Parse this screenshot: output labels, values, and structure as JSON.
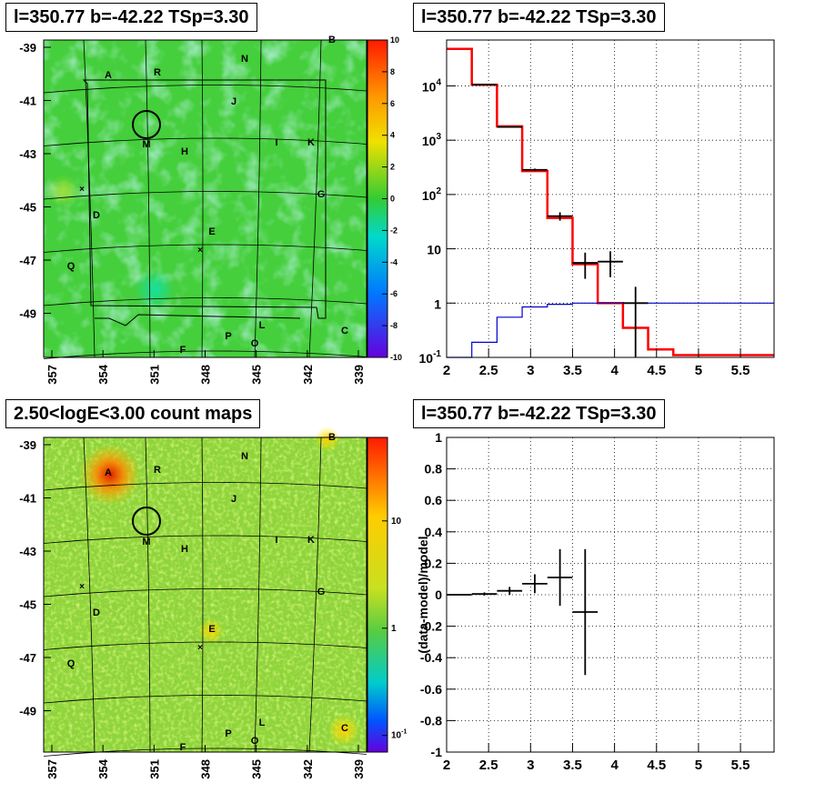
{
  "titles": {
    "tl": "l=350.77 b=-42.22 TSp=3.30",
    "tr": "l=350.77 b=-42.22 TSp=3.30",
    "bl": "2.50<logE<3.00 count maps",
    "br": "l=350.77 b=-42.22 TSp=3.30"
  },
  "colors": {
    "data": "#000000",
    "model": "#ff0000",
    "source": "#0000cc",
    "map_base": "#44d13a"
  },
  "chart_data": [
    {
      "id": "tsmap",
      "type": "heatmap",
      "title": "l=350.77 b=-42.22 TSp=3.30",
      "x_ticks": [
        "357",
        "354",
        "351",
        "348",
        "345",
        "342",
        "339"
      ],
      "y_ticks": [
        "-39",
        "-41",
        "-43",
        "-45",
        "-47",
        "-49"
      ],
      "colorbar_ticks": [
        "10",
        "8",
        "6",
        "4",
        "2",
        "0",
        "-2",
        "-4",
        "-6",
        "-8",
        "-10"
      ],
      "zlim": [
        -10,
        10
      ],
      "source_labels": [
        "A",
        "B",
        "C",
        "D",
        "E",
        "F",
        "G",
        "H",
        "I",
        "J",
        "K",
        "L",
        "M",
        "N",
        "O",
        "P",
        "Q",
        "R"
      ]
    },
    {
      "id": "spectrum",
      "type": "line",
      "title": "l=350.77 b=-42.22 TSp=3.30",
      "xlim": [
        2,
        5.9
      ],
      "ylog": true,
      "ylim": [
        0.1,
        70000
      ],
      "x_ticks": [
        "2",
        "2.5",
        "3",
        "3.5",
        "4",
        "4.5",
        "5",
        "5.5"
      ],
      "y_ticks": [
        {
          "v": 0.1,
          "base": "10",
          "exp": "-1"
        },
        {
          "v": 1,
          "base": "1",
          "exp": ""
        },
        {
          "v": 10,
          "base": "10",
          "exp": ""
        },
        {
          "v": 100,
          "base": "10",
          "exp": "2"
        },
        {
          "v": 1000,
          "base": "10",
          "exp": "3"
        },
        {
          "v": 10000,
          "base": "10",
          "exp": "4"
        }
      ],
      "bin_edges": [
        2.0,
        2.3,
        2.6,
        2.9,
        3.2,
        3.5,
        3.8,
        4.1,
        4.4,
        4.7,
        5.0,
        5.3,
        5.6,
        5.9
      ],
      "series": [
        {
          "values": [
            48000,
            10500,
            1800,
            270,
            37,
            5.2,
            1.0,
            0.35,
            0.14,
            0.11,
            0.11,
            0.11,
            0.11
          ]
        },
        {
          "values": [
            0.1,
            0.19,
            0.55,
            0.85,
            0.95,
            1.0,
            1.0,
            1.0,
            1.0,
            1.0,
            1.0,
            1.0,
            1.0
          ]
        }
      ],
      "data_points": [
        {
          "x": 2.45,
          "y": 10600,
          "xerr": 0.15,
          "yerr_lo": 10500,
          "yerr_hi": 10700
        },
        {
          "x": 2.75,
          "y": 1750,
          "xerr": 0.15,
          "yerr_lo": 1700,
          "yerr_hi": 1800
        },
        {
          "x": 3.05,
          "y": 285,
          "xerr": 0.15,
          "yerr_lo": 270,
          "yerr_hi": 300
        },
        {
          "x": 3.35,
          "y": 40,
          "xerr": 0.15,
          "yerr_lo": 33,
          "yerr_hi": 47
        },
        {
          "x": 3.65,
          "y": 5.5,
          "xerr": 0.15,
          "yerr_lo": 2.8,
          "yerr_hi": 8.5
        },
        {
          "x": 3.95,
          "y": 5.8,
          "xerr": 0.15,
          "yerr_lo": 3.0,
          "yerr_hi": 9.0
        },
        {
          "x": 4.25,
          "y": 1.0,
          "xerr": 0.15,
          "yerr_lo": 0.1,
          "yerr_hi": 2.0
        }
      ]
    },
    {
      "id": "countmap",
      "type": "heatmap",
      "title": "2.50<logE<3.00 count maps",
      "x_ticks": [
        "357",
        "354",
        "351",
        "348",
        "345",
        "342",
        "339"
      ],
      "y_ticks": [
        "-39",
        "-41",
        "-43",
        "-45",
        "-47",
        "-49"
      ],
      "colorbar_ticks": [
        {
          "v": 10,
          "base": "10",
          "exp": ""
        },
        {
          "v": 1,
          "base": "1",
          "exp": ""
        },
        {
          "v": 0.1,
          "base": "10",
          "exp": "-1"
        }
      ],
      "source_labels": [
        "A",
        "B",
        "C",
        "D",
        "E",
        "F",
        "G",
        "H",
        "I",
        "J",
        "K",
        "L",
        "M",
        "N",
        "O",
        "P",
        "Q",
        "R"
      ]
    },
    {
      "id": "residuals",
      "type": "scatter",
      "title": "l=350.77 b=-42.22 TSp=3.30",
      "ylabel": "(data-model)/model",
      "xlim": [
        2,
        5.9
      ],
      "ylim": [
        -1,
        1
      ],
      "x_ticks": [
        "2",
        "2.5",
        "3",
        "3.5",
        "4",
        "4.5",
        "5",
        "5.5"
      ],
      "y_ticks": [
        "1",
        "0.8",
        "0.6",
        "0.4",
        "0.2",
        "0",
        "-0.2",
        "-0.4",
        "-0.6",
        "-0.8",
        "-1"
      ],
      "points": [
        {
          "x": 2.15,
          "y": 0.0,
          "xerr": 0.15,
          "yerr": 0.003
        },
        {
          "x": 2.45,
          "y": 0.005,
          "xerr": 0.15,
          "yerr": 0.01
        },
        {
          "x": 2.75,
          "y": 0.025,
          "xerr": 0.15,
          "yerr": 0.025
        },
        {
          "x": 3.05,
          "y": 0.07,
          "xerr": 0.15,
          "yerr": 0.06
        },
        {
          "x": 3.35,
          "y": 0.11,
          "xerr": 0.15,
          "yerr": 0.18
        },
        {
          "x": 3.65,
          "y": -0.11,
          "xerr": 0.15,
          "yerr": 0.4
        }
      ]
    }
  ]
}
